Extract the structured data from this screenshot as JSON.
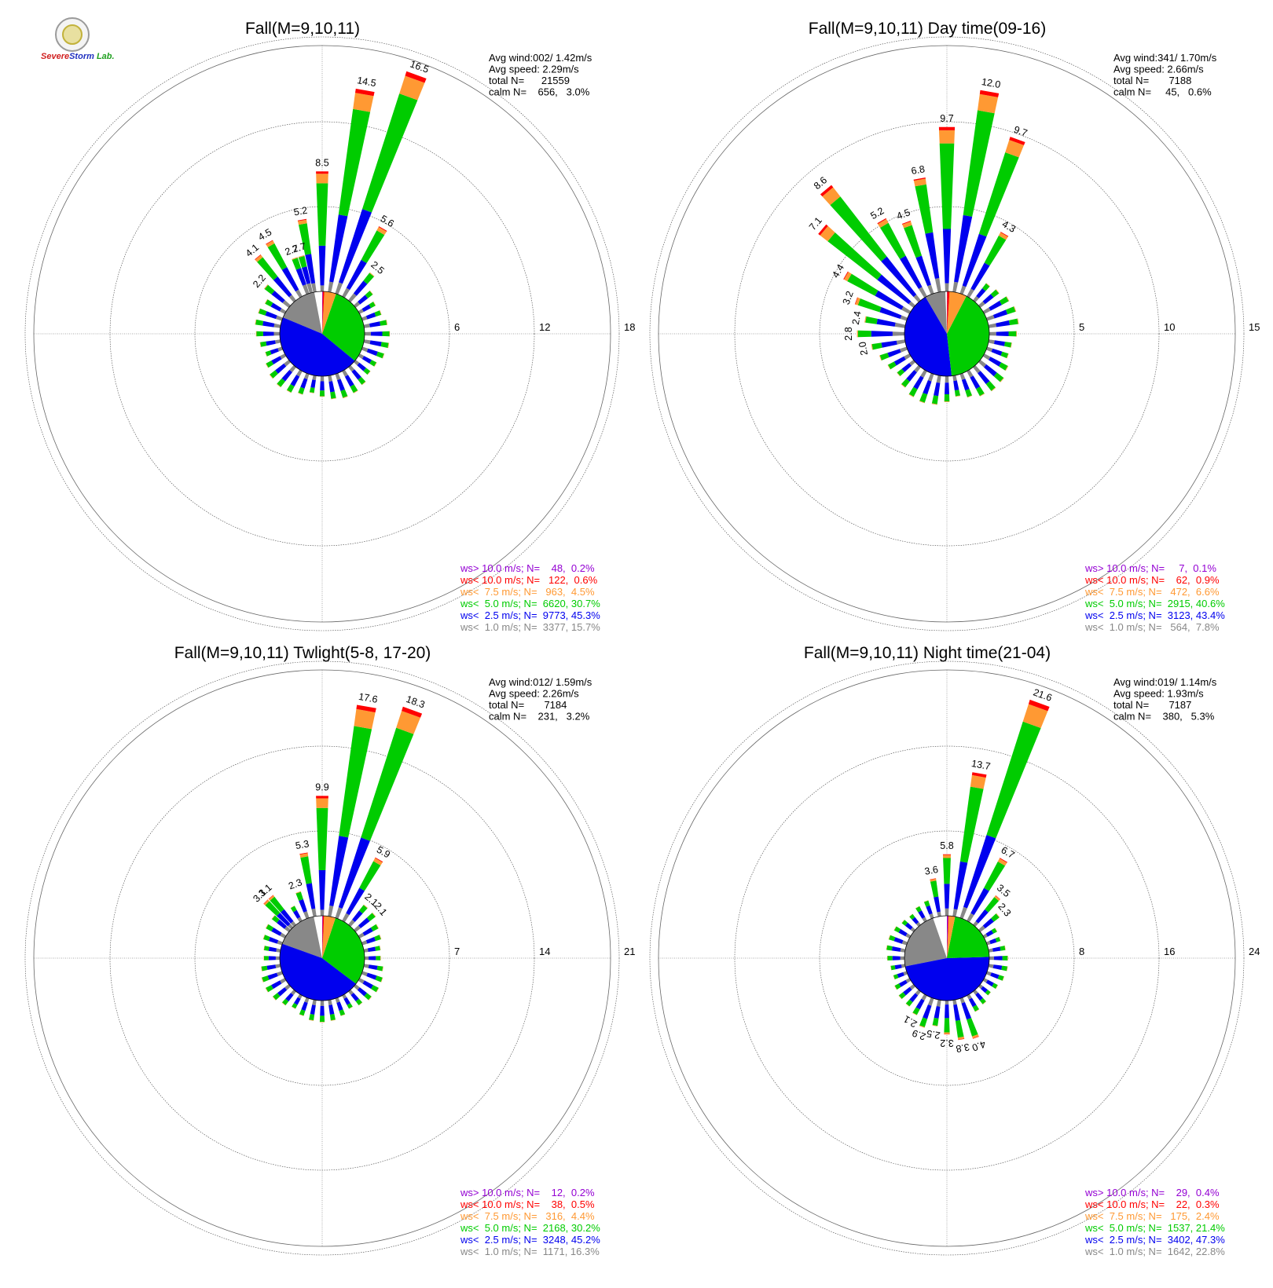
{
  "logo": {
    "name": "severe-storm-lab-logo",
    "text_a": "Severe",
    "text_b": "Storm",
    "text_c": "Lab."
  },
  "colors": {
    "gt10": "#9400d3",
    "lt10": "#ff0000",
    "lt75": "#ff9933",
    "lt5": "#00cc00",
    "lt25": "#0000ee",
    "lt1": "#888888",
    "calm": "#ffffff"
  },
  "chart_data": [
    {
      "type": "windrose",
      "title": "Fall(M=9,10,11)",
      "ring_ticks": [
        "6",
        "12",
        "18"
      ],
      "rmax": 18,
      "stats": [
        "Avg wind:002/ 1.42m/s",
        "Avg speed: 2.29m/s",
        "total N=      21559",
        "calm N=    656,   3.0%"
      ],
      "legend": [
        {
          "label": "ws> 10.0 m/s; N=    48,  0.2%",
          "color": "#9400d3"
        },
        {
          "label": "ws< 10.0 m/s; N=   122,  0.6%",
          "color": "#ff0000"
        },
        {
          "label": "ws<  7.5 m/s; N=   963,  4.5%",
          "color": "#ff9933"
        },
        {
          "label": "ws<  5.0 m/s; N=  6620, 30.7%",
          "color": "#00cc00"
        },
        {
          "label": "ws<  2.5 m/s; N=  9773, 45.3%",
          "color": "#0000ee"
        },
        {
          "label": "ws<  1.0 m/s; N=  3377, 15.7%",
          "color": "#888888"
        }
      ],
      "pie": [
        3.0,
        15.7,
        45.3,
        30.7,
        4.5,
        0.6,
        0.2
      ],
      "sectors": [
        {
          "dir": 0,
          "total": 8.5,
          "label": "8.5"
        },
        {
          "dir": 10,
          "total": 14.5,
          "label": "14.5"
        },
        {
          "dir": 20,
          "total": 16.5,
          "label": "16.5"
        },
        {
          "dir": 30,
          "total": 5.6,
          "label": "5.6"
        },
        {
          "dir": 40,
          "total": 2.5,
          "label": "2.5"
        },
        {
          "dir": 330,
          "total": 4.5,
          "label": "4.5"
        },
        {
          "dir": 320,
          "total": 4.1,
          "label": "4.1"
        },
        {
          "dir": 310,
          "total": 2.2,
          "label": "2.2"
        },
        {
          "dir": 340,
          "total": 2.7,
          "label": "2.7"
        },
        {
          "dir": 345,
          "total": 2.7,
          "label": "2.7"
        },
        {
          "dir": 350,
          "total": 5.2,
          "label": "5.2"
        }
      ]
    },
    {
      "type": "windrose",
      "title": "Fall(M=9,10,11) Day time(09-16)",
      "ring_ticks": [
        "5",
        "10",
        "15"
      ],
      "rmax": 15,
      "stats": [
        "Avg wind:341/ 1.70m/s",
        "Avg speed: 2.66m/s",
        "total N=       7188",
        "calm N=     45,   0.6%"
      ],
      "legend": [
        {
          "label": "ws> 10.0 m/s; N=     7,  0.1%",
          "color": "#9400d3"
        },
        {
          "label": "ws< 10.0 m/s; N=    62,  0.9%",
          "color": "#ff0000"
        },
        {
          "label": "ws<  7.5 m/s; N=   472,  6.6%",
          "color": "#ff9933"
        },
        {
          "label": "ws<  5.0 m/s; N=  2915, 40.6%",
          "color": "#00cc00"
        },
        {
          "label": "ws<  2.5 m/s; N=  3123, 43.4%",
          "color": "#0000ee"
        },
        {
          "label": "ws<  1.0 m/s; N=   564,  7.8%",
          "color": "#888888"
        }
      ],
      "pie": [
        0.6,
        7.8,
        43.4,
        40.6,
        6.6,
        0.9,
        0.1
      ],
      "sectors": [
        {
          "dir": 0,
          "total": 9.7,
          "label": "9.7"
        },
        {
          "dir": 10,
          "total": 12.0,
          "label": "12.0"
        },
        {
          "dir": 20,
          "total": 9.7,
          "label": "9.7"
        },
        {
          "dir": 30,
          "total": 4.3,
          "label": "4.3"
        },
        {
          "dir": 350,
          "total": 6.8,
          "label": "6.8"
        },
        {
          "dir": 340,
          "total": 4.5,
          "label": "4.5"
        },
        {
          "dir": 330,
          "total": 5.2,
          "label": "5.2"
        },
        {
          "dir": 320,
          "total": 8.6,
          "label": "8.6"
        },
        {
          "dir": 310,
          "total": 7.1,
          "label": "7.1"
        },
        {
          "dir": 300,
          "total": 4.4,
          "label": "4.4"
        },
        {
          "dir": 290,
          "total": 3.2,
          "label": "3.2"
        },
        {
          "dir": 280,
          "total": 2.4,
          "label": "2.4"
        },
        {
          "dir": 270,
          "total": 2.8,
          "label": "2.8"
        },
        {
          "dir": 260,
          "total": 2.0,
          "label": "2.0"
        }
      ]
    },
    {
      "type": "windrose",
      "title": "Fall(M=9,10,11) Twlight(5-8, 17-20)",
      "ring_ticks": [
        "7",
        "14",
        "21"
      ],
      "rmax": 21,
      "stats": [
        "Avg wind:012/ 1.59m/s",
        "Avg speed: 2.26m/s",
        "total N=       7184",
        "calm N=    231,   3.2%"
      ],
      "legend": [
        {
          "label": "ws> 10.0 m/s; N=    12,  0.2%",
          "color": "#9400d3"
        },
        {
          "label": "ws< 10.0 m/s; N=    38,  0.5%",
          "color": "#ff0000"
        },
        {
          "label": "ws<  7.5 m/s; N=   316,  4.4%",
          "color": "#ff9933"
        },
        {
          "label": "ws<  5.0 m/s; N=  2168, 30.2%",
          "color": "#00cc00"
        },
        {
          "label": "ws<  2.5 m/s; N=  3248, 45.2%",
          "color": "#0000ee"
        },
        {
          "label": "ws<  1.0 m/s; N=  1171, 16.3%",
          "color": "#888888"
        }
      ],
      "pie": [
        3.2,
        16.3,
        45.2,
        30.2,
        4.4,
        0.5,
        0.2
      ],
      "sectors": [
        {
          "dir": 0,
          "total": 9.9,
          "label": "9.9"
        },
        {
          "dir": 10,
          "total": 17.6,
          "label": "17.6"
        },
        {
          "dir": 20,
          "total": 18.3,
          "label": "18.3"
        },
        {
          "dir": 30,
          "total": 5.9,
          "label": "5.9"
        },
        {
          "dir": 40,
          "total": 2.1,
          "label": "2.1"
        },
        {
          "dir": 50,
          "total": 2.1,
          "label": "2.1"
        },
        {
          "dir": 350,
          "total": 5.3,
          "label": "5.3"
        },
        {
          "dir": 340,
          "total": 2.3,
          "label": "2.3"
        },
        {
          "dir": 320,
          "total": 3.1,
          "label": "3.1"
        },
        {
          "dir": 315,
          "total": 3.1,
          "label": "3.1"
        }
      ]
    },
    {
      "type": "windrose",
      "title": "Fall(M=9,10,11) Night time(21-04)",
      "ring_ticks": [
        "8",
        "16",
        "24"
      ],
      "rmax": 24,
      "stats": [
        "Avg wind:019/ 1.14m/s",
        "Avg speed: 1.93m/s",
        "total N=       7187",
        "calm N=    380,   5.3%"
      ],
      "legend": [
        {
          "label": "ws> 10.0 m/s; N=    29,  0.4%",
          "color": "#9400d3"
        },
        {
          "label": "ws< 10.0 m/s; N=    22,  0.3%",
          "color": "#ff0000"
        },
        {
          "label": "ws<  7.5 m/s; N=   175,  2.4%",
          "color": "#ff9933"
        },
        {
          "label": "ws<  5.0 m/s; N=  1537, 21.4%",
          "color": "#00cc00"
        },
        {
          "label": "ws<  2.5 m/s; N=  3402, 47.3%",
          "color": "#0000ee"
        },
        {
          "label": "ws<  1.0 m/s; N=  1642, 22.8%",
          "color": "#888888"
        }
      ],
      "pie": [
        5.3,
        22.8,
        47.3,
        21.4,
        2.4,
        0.3,
        0.4
      ],
      "sectors": [
        {
          "dir": 0,
          "total": 5.8,
          "label": "5.8"
        },
        {
          "dir": 10,
          "total": 13.7,
          "label": "13.7"
        },
        {
          "dir": 20,
          "total": 21.6,
          "label": "21.6"
        },
        {
          "dir": 30,
          "total": 6.7,
          "label": "6.7"
        },
        {
          "dir": 40,
          "total": 3.5,
          "label": "3.5"
        },
        {
          "dir": 50,
          "total": 2.3,
          "label": "2.3"
        },
        {
          "dir": 350,
          "total": 3.6,
          "label": "3.6"
        },
        {
          "dir": 200,
          "total": 2.9,
          "label": "2.9"
        },
        {
          "dir": 190,
          "total": 2.5,
          "label": "2.5"
        },
        {
          "dir": 180,
          "total": 3.2,
          "label": "3.2"
        },
        {
          "dir": 170,
          "total": 3.8,
          "label": "3.8"
        },
        {
          "dir": 160,
          "total": 4.0,
          "label": "4.0"
        },
        {
          "dir": 210,
          "total": 2.1,
          "label": "2.1"
        }
      ]
    }
  ]
}
